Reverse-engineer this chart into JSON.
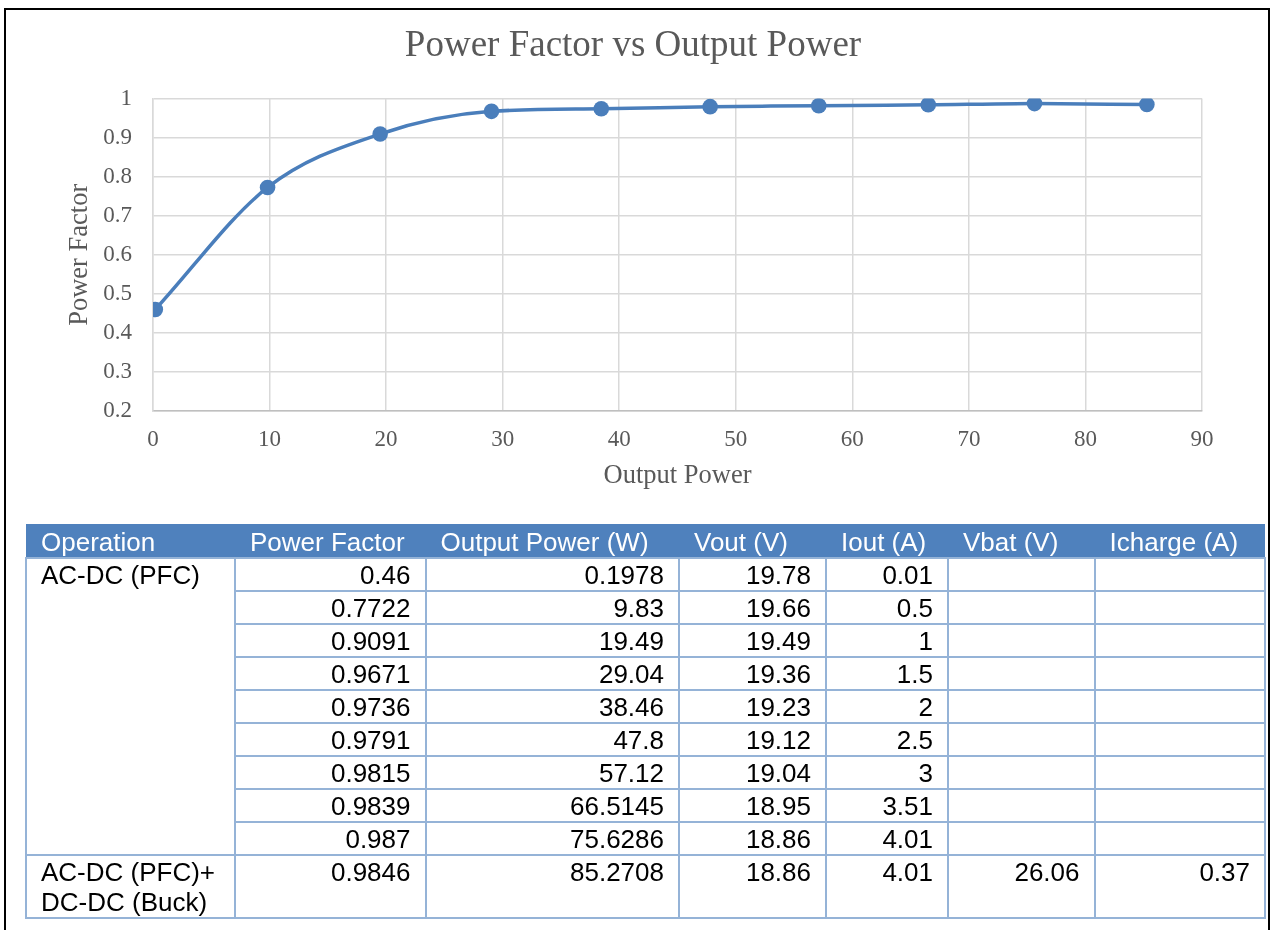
{
  "chart_data": [
    {
      "type": "line",
      "title": "Power Factor vs Output Power",
      "xlabel": "Output Power",
      "ylabel": "Power Factor",
      "x": [
        0.1978,
        9.83,
        19.49,
        29.04,
        38.46,
        47.8,
        57.12,
        66.5145,
        75.6286,
        85.2708
      ],
      "values": [
        0.46,
        0.7722,
        0.9091,
        0.9671,
        0.9736,
        0.9791,
        0.9815,
        0.9839,
        0.987,
        0.9846
      ],
      "color": "#4a7ebb",
      "marker": "circle",
      "line_style": "solid",
      "xlim": [
        0,
        90
      ],
      "xticks": [
        0,
        10,
        20,
        30,
        40,
        50,
        60,
        70,
        80,
        90
      ],
      "ylim": [
        0.2,
        1
      ],
      "yticks": [
        0.2,
        0.3,
        0.4,
        0.5,
        0.6,
        0.7,
        0.8,
        0.9,
        1
      ],
      "grid": true
    },
    {
      "type": "other",
      "categories": [
        "Operation",
        "Power Factor",
        "Output Power (W)",
        "Vout (V)",
        "Iout (A)",
        "Vbat (V)",
        "Icharge (A)"
      ],
      "cell_labels": [
        [
          "AC-DC (PFC)",
          "0.46",
          "0.1978",
          "19.78",
          "0.01",
          null,
          null
        ],
        [
          null,
          "0.7722",
          "9.83",
          "19.66",
          "0.5",
          null,
          null
        ],
        [
          null,
          "0.9091",
          "19.49",
          "19.49",
          "1",
          null,
          null
        ],
        [
          null,
          "0.9671",
          "29.04",
          "19.36",
          "1.5",
          null,
          null
        ],
        [
          null,
          "0.9736",
          "38.46",
          "19.23",
          "2",
          null,
          null
        ],
        [
          null,
          "0.9791",
          "47.8",
          "19.12",
          "2.5",
          null,
          null
        ],
        [
          null,
          "0.9815",
          "57.12",
          "19.04",
          "3",
          null,
          null
        ],
        [
          null,
          "0.9839",
          "66.5145",
          "18.95",
          "3.51",
          null,
          null
        ],
        [
          null,
          "0.987",
          "75.6286",
          "18.86",
          "4.01",
          null,
          null
        ],
        [
          "AC-DC (PFC)+ DC-DC (Buck)",
          "0.9846",
          "85.2708",
          "18.86",
          "4.01",
          "26.06",
          "0.37"
        ]
      ]
    }
  ]
}
